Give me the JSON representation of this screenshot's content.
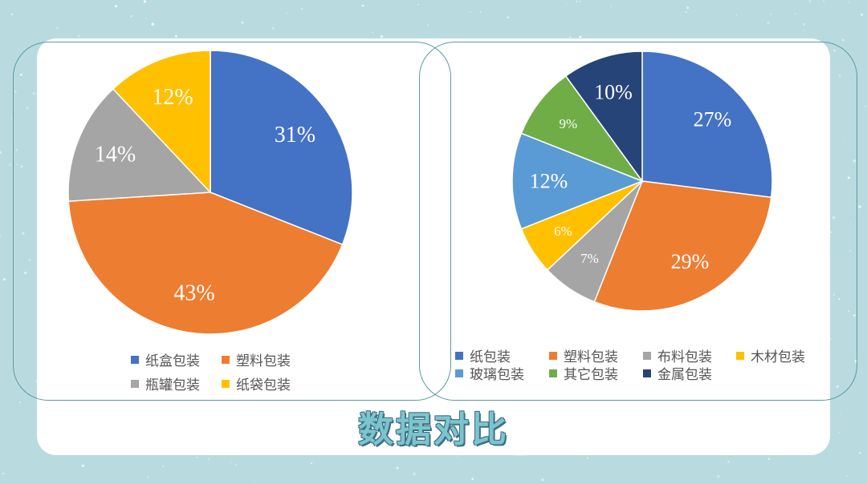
{
  "page_title": "数据对比",
  "chart_data": [
    {
      "type": "pie",
      "categories": [
        "纸盒包装",
        "塑料包装",
        "瓶罐包装",
        "纸袋包装"
      ],
      "values": [
        31,
        43,
        14,
        12
      ],
      "labels": [
        "31%",
        "43%",
        "14%",
        "12%"
      ],
      "colors": [
        "#4472c4",
        "#ed7d31",
        "#a5a5a5",
        "#ffc000"
      ],
      "legend_position": "bottom"
    },
    {
      "type": "pie",
      "categories": [
        "纸包装",
        "塑料包装",
        "布料包装",
        "木材包装",
        "玻璃包装",
        "其它包装",
        "金属包装"
      ],
      "values": [
        27,
        29,
        7,
        6,
        12,
        9,
        10
      ],
      "labels": [
        "27%",
        "29%",
        "7%",
        "6%",
        "12%",
        "9%",
        "10%"
      ],
      "colors": [
        "#4472c4",
        "#ed7d31",
        "#a5a5a5",
        "#ffc000",
        "#5b9bd5",
        "#70ad47",
        "#264478"
      ],
      "legend_position": "bottom"
    }
  ]
}
